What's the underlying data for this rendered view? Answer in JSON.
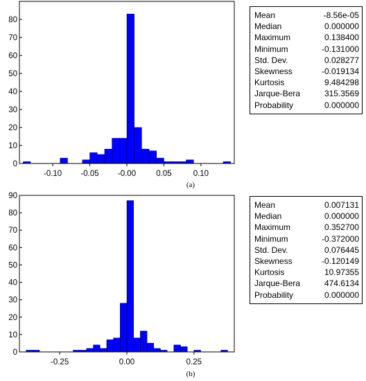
{
  "chart_data": [
    {
      "type": "bar",
      "panel_label": "(a)",
      "x_ticks": [
        "-0.10",
        "-0.05",
        "-0.00",
        "0.05",
        "0.10"
      ],
      "x_tick_values": [
        -0.1,
        -0.05,
        0.0,
        0.05,
        0.1
      ],
      "y_ticks": [
        "0",
        "10",
        "20",
        "30",
        "40",
        "50",
        "60",
        "70",
        "80"
      ],
      "xlim": [
        -0.145,
        0.145
      ],
      "ylim": [
        0,
        90
      ],
      "bin_width": 0.01,
      "bar_color": "#0000ff",
      "bars": [
        {
          "x": -0.135,
          "value": 1
        },
        {
          "x": -0.085,
          "value": 3
        },
        {
          "x": -0.055,
          "value": 2
        },
        {
          "x": -0.045,
          "value": 6
        },
        {
          "x": -0.035,
          "value": 5
        },
        {
          "x": -0.025,
          "value": 8
        },
        {
          "x": -0.015,
          "value": 14
        },
        {
          "x": -0.005,
          "value": 14
        },
        {
          "x": 0.005,
          "value": 83
        },
        {
          "x": 0.015,
          "value": 20
        },
        {
          "x": 0.025,
          "value": 8
        },
        {
          "x": 0.035,
          "value": 7
        },
        {
          "x": 0.045,
          "value": 3
        },
        {
          "x": 0.055,
          "value": 1
        },
        {
          "x": 0.065,
          "value": 1
        },
        {
          "x": 0.075,
          "value": 1
        },
        {
          "x": 0.085,
          "value": 2
        },
        {
          "x": 0.135,
          "value": 1
        }
      ],
      "stats": [
        {
          "label": "Mean",
          "value": "-8.56e-05"
        },
        {
          "label": "Median",
          "value": "0.000000"
        },
        {
          "label": "Maximum",
          "value": "0.138400"
        },
        {
          "label": "Minimum",
          "value": "-0.131000"
        },
        {
          "label": "Std. Dev.",
          "value": "0.028277"
        },
        {
          "label": "Skewness",
          "value": "-0.019134"
        },
        {
          "label": "Kurtosis",
          "value": "9.484298"
        },
        {
          "label": "Jarque-Bera",
          "value": "315.3569"
        },
        {
          "label": "Probability",
          "value": "0.000000"
        }
      ]
    },
    {
      "type": "bar",
      "panel_label": "(b)",
      "x_ticks": [
        "-0.25",
        "0.00",
        "0.25"
      ],
      "x_tick_values": [
        -0.25,
        0.0,
        0.25
      ],
      "y_ticks": [
        "0",
        "10",
        "20",
        "30",
        "40",
        "50",
        "60",
        "70",
        "80",
        "90"
      ],
      "xlim": [
        -0.4,
        0.4
      ],
      "ylim": [
        0,
        90
      ],
      "bin_width": 0.025,
      "bar_color": "#0000ff",
      "bars": [
        {
          "x": -0.3625,
          "value": 1
        },
        {
          "x": -0.3375,
          "value": 1
        },
        {
          "x": -0.1875,
          "value": 1
        },
        {
          "x": -0.1625,
          "value": 1
        },
        {
          "x": -0.1375,
          "value": 2
        },
        {
          "x": -0.1125,
          "value": 4
        },
        {
          "x": -0.0875,
          "value": 2
        },
        {
          "x": -0.0625,
          "value": 7
        },
        {
          "x": -0.0375,
          "value": 8
        },
        {
          "x": -0.0125,
          "value": 28
        },
        {
          "x": 0.0125,
          "value": 87
        },
        {
          "x": 0.0375,
          "value": 8
        },
        {
          "x": 0.0625,
          "value": 12
        },
        {
          "x": 0.0875,
          "value": 5
        },
        {
          "x": 0.1125,
          "value": 2
        },
        {
          "x": 0.1375,
          "value": 1
        },
        {
          "x": 0.1875,
          "value": 4
        },
        {
          "x": 0.2125,
          "value": 3
        },
        {
          "x": 0.2625,
          "value": 1
        },
        {
          "x": 0.3625,
          "value": 1
        }
      ],
      "stats": [
        {
          "label": "Mean",
          "value": "0.007131"
        },
        {
          "label": "Median",
          "value": "0.000000"
        },
        {
          "label": "Maximum",
          "value": "0.352700"
        },
        {
          "label": "Minimum",
          "value": "-0.372000"
        },
        {
          "label": "Std. Dev.",
          "value": "0.076445"
        },
        {
          "label": "Skewness",
          "value": "-0.120149"
        },
        {
          "label": "Kurtosis",
          "value": "10.97355"
        },
        {
          "label": "Jarque-Bera",
          "value": "474.6134"
        },
        {
          "label": "Probability",
          "value": "0.000000"
        }
      ]
    }
  ]
}
